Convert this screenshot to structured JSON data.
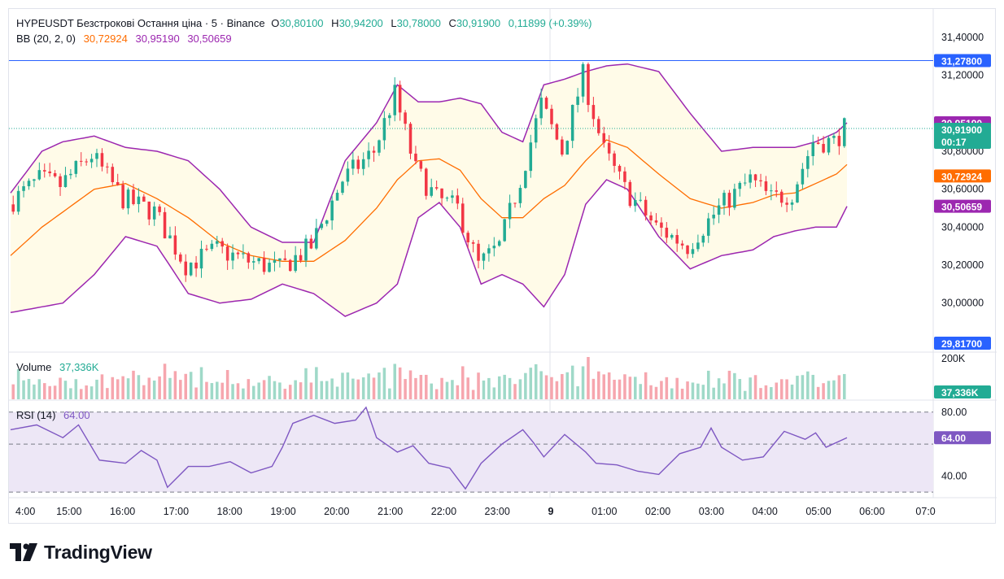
{
  "header": {
    "symbol_line": "HYPEUSDT Безстрокові Остання ціна · 5 · Binance",
    "o_label": "O",
    "o_value": "30,80100",
    "h_label": "H",
    "h_value": "30,94200",
    "l_label": "L",
    "l_value": "30,78000",
    "c_label": "C",
    "c_value": "30,91900",
    "change": "0,11899 (+0.39%)"
  },
  "bb_legend": {
    "label": "BB (20, 2, 0)",
    "basis": "30,72924",
    "upper": "30,95190",
    "lower": "30,50659"
  },
  "volume_legend": {
    "label": "Volume",
    "value": "37,336K"
  },
  "rsi_legend": {
    "label": "RSI (14)",
    "value": "64.00"
  },
  "colors": {
    "up": "#22ab94",
    "down": "#f23645",
    "upper_band": "#9c27b0",
    "basis": "#ff6d00",
    "band_fill": "#fffbe8",
    "rsi_line": "#7e57c2",
    "rsi_fill": "#ede7f6",
    "price_line": "#2962ff",
    "volume_up": "#9fd9c8",
    "volume_down": "#f6a6ae"
  },
  "brand": {
    "name": "TradingView",
    "logo_icon": "tradingview-logo-icon"
  },
  "chart_data": {
    "type": "candlestick",
    "interval": "5",
    "x_ticks": [
      "4:00",
      "15:00",
      "16:00",
      "17:00",
      "18:00",
      "19:00",
      "20:00",
      "21:00",
      "22:00",
      "23:00",
      "9",
      "01:00",
      "02:00",
      "03:00",
      "04:00",
      "05:00",
      "06:00",
      "07:0"
    ],
    "y_ticks": [
      "31,40000",
      "31,20000",
      "30,80000",
      "30,60000",
      "30,40000",
      "30,20000",
      "30,00000"
    ],
    "ylim": [
      29.75,
      31.55
    ],
    "price_labels": {
      "horizontal_line": "31,27800",
      "bb_upper": "30,95190",
      "last_price": "30,91900",
      "countdown": "00:17",
      "bb_basis": "30,72924",
      "bb_lower": "30,50659",
      "low_marker": "29,81700"
    },
    "horizontal_line_value": 31.278,
    "anchors": [
      {
        "t": 0,
        "close": 30.52,
        "basis": 30.25,
        "upper": 30.58,
        "lower": 29.95
      },
      {
        "t": 6,
        "close": 30.65,
        "basis": 30.4,
        "upper": 30.8,
        "lower": 29.98
      },
      {
        "t": 10,
        "close": 30.62,
        "basis": 30.48,
        "upper": 30.85,
        "lower": 30.0
      },
      {
        "t": 16,
        "close": 30.78,
        "basis": 30.6,
        "upper": 30.88,
        "lower": 30.15
      },
      {
        "t": 22,
        "close": 30.55,
        "basis": 30.63,
        "upper": 30.82,
        "lower": 30.35
      },
      {
        "t": 28,
        "close": 30.48,
        "basis": 30.55,
        "upper": 30.8,
        "lower": 30.3
      },
      {
        "t": 34,
        "close": 30.2,
        "basis": 30.45,
        "upper": 30.75,
        "lower": 30.05
      },
      {
        "t": 40,
        "close": 30.28,
        "basis": 30.32,
        "upper": 30.6,
        "lower": 30.0
      },
      {
        "t": 46,
        "close": 30.22,
        "basis": 30.25,
        "upper": 30.4,
        "lower": 30.02
      },
      {
        "t": 52,
        "close": 30.18,
        "basis": 30.22,
        "upper": 30.32,
        "lower": 30.1
      },
      {
        "t": 58,
        "close": 30.3,
        "basis": 30.22,
        "upper": 30.32,
        "lower": 30.05
      },
      {
        "t": 64,
        "close": 30.65,
        "basis": 30.33,
        "upper": 30.75,
        "lower": 29.93
      },
      {
        "t": 70,
        "close": 30.8,
        "basis": 30.5,
        "upper": 30.95,
        "lower": 30.0
      },
      {
        "t": 74,
        "close": 31.1,
        "basis": 30.65,
        "upper": 31.15,
        "lower": 30.1
      },
      {
        "t": 78,
        "close": 30.7,
        "basis": 30.75,
        "upper": 31.06,
        "lower": 30.45
      },
      {
        "t": 82,
        "close": 30.55,
        "basis": 30.76,
        "upper": 31.06,
        "lower": 30.53
      },
      {
        "t": 86,
        "close": 30.5,
        "basis": 30.7,
        "upper": 31.08,
        "lower": 30.4
      },
      {
        "t": 90,
        "close": 30.2,
        "basis": 30.55,
        "upper": 31.05,
        "lower": 30.1
      },
      {
        "t": 94,
        "close": 30.3,
        "basis": 30.45,
        "upper": 30.9,
        "lower": 30.15
      },
      {
        "t": 98,
        "close": 30.65,
        "basis": 30.45,
        "upper": 30.85,
        "lower": 30.1
      },
      {
        "t": 102,
        "close": 31.05,
        "basis": 30.55,
        "upper": 31.15,
        "lower": 29.98
      },
      {
        "t": 106,
        "close": 30.8,
        "basis": 30.62,
        "upper": 31.18,
        "lower": 30.15
      },
      {
        "t": 110,
        "close": 31.2,
        "basis": 30.75,
        "upper": 31.22,
        "lower": 30.52
      },
      {
        "t": 114,
        "close": 30.8,
        "basis": 30.86,
        "upper": 31.25,
        "lower": 30.65
      },
      {
        "t": 118,
        "close": 30.6,
        "basis": 30.82,
        "upper": 31.26,
        "lower": 30.6
      },
      {
        "t": 124,
        "close": 30.4,
        "basis": 30.68,
        "upper": 31.22,
        "lower": 30.35
      },
      {
        "t": 130,
        "close": 30.3,
        "basis": 30.55,
        "upper": 31.0,
        "lower": 30.18
      },
      {
        "t": 136,
        "close": 30.5,
        "basis": 30.5,
        "upper": 30.8,
        "lower": 30.25
      },
      {
        "t": 142,
        "close": 30.65,
        "basis": 30.53,
        "upper": 30.82,
        "lower": 30.28
      },
      {
        "t": 146,
        "close": 30.55,
        "basis": 30.57,
        "upper": 30.82,
        "lower": 30.35
      },
      {
        "t": 150,
        "close": 30.58,
        "basis": 30.58,
        "upper": 30.82,
        "lower": 30.38
      },
      {
        "t": 154,
        "close": 30.85,
        "basis": 30.63,
        "upper": 30.85,
        "lower": 30.4
      },
      {
        "t": 158,
        "close": 30.85,
        "basis": 30.68,
        "upper": 30.9,
        "lower": 30.4
      },
      {
        "t": 160,
        "close": 30.92,
        "basis": 30.73,
        "upper": 30.95,
        "lower": 30.51
      }
    ],
    "candles_total": 160,
    "volume_axis": {
      "max_label": "200K",
      "last_label": "37,336K"
    },
    "rsi": {
      "levels": [
        80,
        60,
        40
      ],
      "level_labels": [
        "80.00",
        "40.00"
      ],
      "value_label": "64.00",
      "ylim": [
        28,
        86
      ],
      "anchors": [
        {
          "t": 0,
          "v": 69
        },
        {
          "t": 5,
          "v": 72
        },
        {
          "t": 10,
          "v": 64
        },
        {
          "t": 13,
          "v": 72
        },
        {
          "t": 17,
          "v": 50
        },
        {
          "t": 22,
          "v": 48
        },
        {
          "t": 25,
          "v": 56
        },
        {
          "t": 28,
          "v": 50
        },
        {
          "t": 30,
          "v": 33
        },
        {
          "t": 34,
          "v": 46
        },
        {
          "t": 38,
          "v": 46
        },
        {
          "t": 42,
          "v": 49
        },
        {
          "t": 46,
          "v": 42
        },
        {
          "t": 50,
          "v": 46
        },
        {
          "t": 52,
          "v": 58
        },
        {
          "t": 54,
          "v": 73
        },
        {
          "t": 58,
          "v": 78
        },
        {
          "t": 62,
          "v": 73
        },
        {
          "t": 66,
          "v": 75
        },
        {
          "t": 68,
          "v": 83
        },
        {
          "t": 70,
          "v": 64
        },
        {
          "t": 74,
          "v": 55
        },
        {
          "t": 77,
          "v": 59
        },
        {
          "t": 80,
          "v": 48
        },
        {
          "t": 84,
          "v": 45
        },
        {
          "t": 87,
          "v": 32
        },
        {
          "t": 90,
          "v": 48
        },
        {
          "t": 94,
          "v": 60
        },
        {
          "t": 98,
          "v": 69
        },
        {
          "t": 100,
          "v": 61
        },
        {
          "t": 102,
          "v": 52
        },
        {
          "t": 106,
          "v": 66
        },
        {
          "t": 110,
          "v": 55
        },
        {
          "t": 112,
          "v": 48
        },
        {
          "t": 116,
          "v": 47
        },
        {
          "t": 120,
          "v": 43
        },
        {
          "t": 124,
          "v": 41
        },
        {
          "t": 128,
          "v": 54
        },
        {
          "t": 132,
          "v": 58
        },
        {
          "t": 134,
          "v": 70
        },
        {
          "t": 136,
          "v": 58
        },
        {
          "t": 140,
          "v": 50
        },
        {
          "t": 144,
          "v": 52
        },
        {
          "t": 148,
          "v": 68
        },
        {
          "t": 152,
          "v": 63
        },
        {
          "t": 154,
          "v": 67
        },
        {
          "t": 156,
          "v": 58
        },
        {
          "t": 160,
          "v": 64
        }
      ]
    },
    "grid": false,
    "legend_position": "top-left"
  }
}
